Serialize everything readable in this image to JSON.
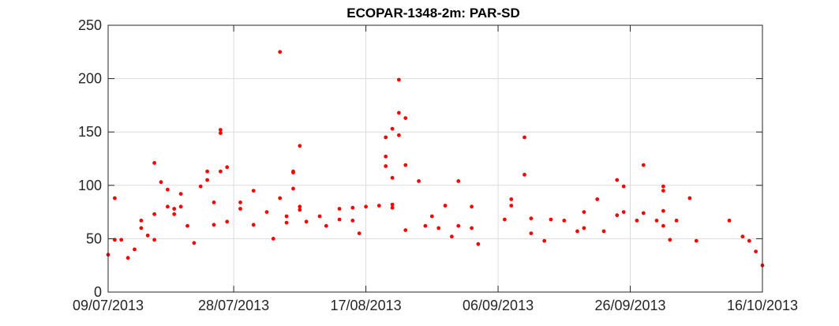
{
  "chart_data": {
    "type": "scatter",
    "title": "ECOPAR-1348-2m: PAR-SD",
    "xlabel": "",
    "ylabel": "",
    "x_axis_type": "date",
    "xlim": [
      "2013-07-09",
      "2013-10-16"
    ],
    "ylim": [
      0,
      250
    ],
    "x_ticks": [
      "09/07/2013",
      "28/07/2013",
      "17/08/2013",
      "06/09/2013",
      "26/09/2013",
      "16/10/2013"
    ],
    "y_ticks": [
      0,
      50,
      100,
      150,
      200,
      250
    ],
    "grid": true,
    "marker_color": "#ff0000",
    "marker": "dot",
    "series": [
      {
        "points": [
          [
            "2013-07-09",
            35
          ],
          [
            "2013-07-10",
            88
          ],
          [
            "2013-07-10",
            49
          ],
          [
            "2013-07-11",
            49
          ],
          [
            "2013-07-12",
            32
          ],
          [
            "2013-07-13",
            40
          ],
          [
            "2013-07-14",
            67
          ],
          [
            "2013-07-14",
            60
          ],
          [
            "2013-07-15",
            53
          ],
          [
            "2013-07-16",
            49
          ],
          [
            "2013-07-16",
            121
          ],
          [
            "2013-07-16",
            73
          ],
          [
            "2013-07-17",
            103
          ],
          [
            "2013-07-18",
            96
          ],
          [
            "2013-07-18",
            80
          ],
          [
            "2013-07-19",
            78
          ],
          [
            "2013-07-19",
            73
          ],
          [
            "2013-07-20",
            92
          ],
          [
            "2013-07-20",
            80
          ],
          [
            "2013-07-21",
            62
          ],
          [
            "2013-07-22",
            46
          ],
          [
            "2013-07-23",
            99
          ],
          [
            "2013-07-24",
            113
          ],
          [
            "2013-07-24",
            105
          ],
          [
            "2013-07-25",
            84
          ],
          [
            "2013-07-25",
            63
          ],
          [
            "2013-07-26",
            152
          ],
          [
            "2013-07-26",
            149
          ],
          [
            "2013-07-26",
            113
          ],
          [
            "2013-07-27",
            117
          ],
          [
            "2013-07-27",
            66
          ],
          [
            "2013-07-29",
            84
          ],
          [
            "2013-07-29",
            78
          ],
          [
            "2013-07-31",
            95
          ],
          [
            "2013-07-31",
            63
          ],
          [
            "2013-08-02",
            75
          ],
          [
            "2013-08-03",
            50
          ],
          [
            "2013-08-04",
            88
          ],
          [
            "2013-08-04",
            225
          ],
          [
            "2013-08-05",
            71
          ],
          [
            "2013-08-05",
            65
          ],
          [
            "2013-08-06",
            113
          ],
          [
            "2013-08-06",
            112
          ],
          [
            "2013-08-06",
            97
          ],
          [
            "2013-08-07",
            137
          ],
          [
            "2013-08-07",
            80
          ],
          [
            "2013-08-07",
            77
          ],
          [
            "2013-08-08",
            66
          ],
          [
            "2013-08-10",
            71
          ],
          [
            "2013-08-11",
            62
          ],
          [
            "2013-08-13",
            78
          ],
          [
            "2013-08-13",
            68
          ],
          [
            "2013-08-15",
            79
          ],
          [
            "2013-08-15",
            67
          ],
          [
            "2013-08-16",
            55
          ],
          [
            "2013-08-17",
            80
          ],
          [
            "2013-08-19",
            81
          ],
          [
            "2013-08-20",
            145
          ],
          [
            "2013-08-20",
            127
          ],
          [
            "2013-08-20",
            118
          ],
          [
            "2013-08-21",
            153
          ],
          [
            "2013-08-21",
            107
          ],
          [
            "2013-08-21",
            82
          ],
          [
            "2013-08-21",
            79
          ],
          [
            "2013-08-22",
            168
          ],
          [
            "2013-08-22",
            147
          ],
          [
            "2013-08-22",
            199
          ],
          [
            "2013-08-23",
            163
          ],
          [
            "2013-08-23",
            119
          ],
          [
            "2013-08-23",
            58
          ],
          [
            "2013-08-25",
            104
          ],
          [
            "2013-08-26",
            62
          ],
          [
            "2013-08-27",
            71
          ],
          [
            "2013-08-28",
            60
          ],
          [
            "2013-08-29",
            81
          ],
          [
            "2013-08-30",
            52
          ],
          [
            "2013-08-31",
            104
          ],
          [
            "2013-08-31",
            62
          ],
          [
            "2013-09-02",
            80
          ],
          [
            "2013-09-02",
            60
          ],
          [
            "2013-09-03",
            45
          ],
          [
            "2013-09-07",
            68
          ],
          [
            "2013-09-08",
            87
          ],
          [
            "2013-09-08",
            81
          ],
          [
            "2013-09-10",
            145
          ],
          [
            "2013-09-10",
            110
          ],
          [
            "2013-09-11",
            69
          ],
          [
            "2013-09-11",
            55
          ],
          [
            "2013-09-13",
            48
          ],
          [
            "2013-09-14",
            68
          ],
          [
            "2013-09-16",
            67
          ],
          [
            "2013-09-18",
            57
          ],
          [
            "2013-09-19",
            75
          ],
          [
            "2013-09-19",
            60
          ],
          [
            "2013-09-21",
            87
          ],
          [
            "2013-09-22",
            57
          ],
          [
            "2013-09-24",
            105
          ],
          [
            "2013-09-24",
            72
          ],
          [
            "2013-09-25",
            99
          ],
          [
            "2013-09-25",
            75
          ],
          [
            "2013-09-27",
            67
          ],
          [
            "2013-09-28",
            119
          ],
          [
            "2013-09-28",
            74
          ],
          [
            "2013-09-30",
            67
          ],
          [
            "2013-10-01",
            99
          ],
          [
            "2013-10-01",
            95
          ],
          [
            "2013-10-01",
            76
          ],
          [
            "2013-10-01",
            62
          ],
          [
            "2013-10-02",
            49
          ],
          [
            "2013-10-03",
            67
          ],
          [
            "2013-10-05",
            88
          ],
          [
            "2013-10-06",
            48
          ],
          [
            "2013-10-11",
            67
          ],
          [
            "2013-10-13",
            52
          ],
          [
            "2013-10-14",
            48
          ],
          [
            "2013-10-15",
            38
          ],
          [
            "2013-10-16",
            25
          ]
        ]
      }
    ]
  }
}
